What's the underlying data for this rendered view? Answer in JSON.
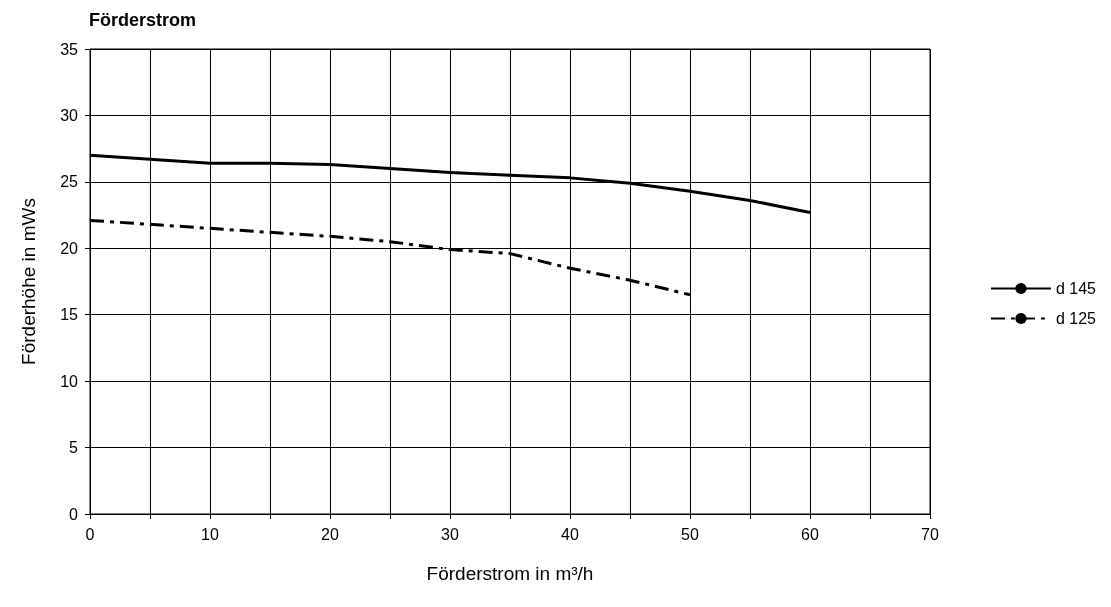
{
  "chart_data": {
    "type": "line",
    "title": "Förderstrom",
    "xlabel": "Förderstrom in m³/h",
    "ylabel": "Förderhöhe in mWs",
    "xlim": [
      0,
      70
    ],
    "xticks": [
      0,
      {
        "value": 5,
        "label": null
      },
      10,
      {
        "value": 15,
        "label": null
      },
      20,
      {
        "value": 25,
        "label": null
      },
      30,
      {
        "value": 35,
        "label": null
      },
      40,
      {
        "value": 45,
        "label": null
      },
      50,
      {
        "value": 55,
        "label": null
      },
      60,
      {
        "value": 65,
        "label": null
      },
      70
    ],
    "ylim": [
      0,
      35
    ],
    "yticks": [
      0,
      5,
      10,
      15,
      20,
      25,
      30,
      35
    ],
    "grid": true,
    "legend": "right",
    "marker": "none",
    "series": [
      {
        "name": "d 145",
        "color": "#000000",
        "line_style": "solid",
        "x": [
          0,
          10,
          15,
          20,
          25,
          30,
          35,
          40,
          45,
          50,
          55,
          60
        ],
        "values": [
          27.0,
          26.4,
          26.4,
          26.3,
          26.0,
          25.7,
          25.5,
          25.3,
          24.9,
          24.3,
          23.6,
          22.7
        ]
      },
      {
        "name": "d 125",
        "color": "#000000",
        "line_style": "dashed",
        "x": [
          0,
          10,
          15,
          20,
          25,
          30,
          35,
          40,
          45,
          50
        ],
        "values": [
          22.1,
          21.5,
          21.2,
          20.9,
          20.5,
          19.9,
          19.6,
          18.5,
          17.6,
          16.5
        ]
      }
    ]
  }
}
